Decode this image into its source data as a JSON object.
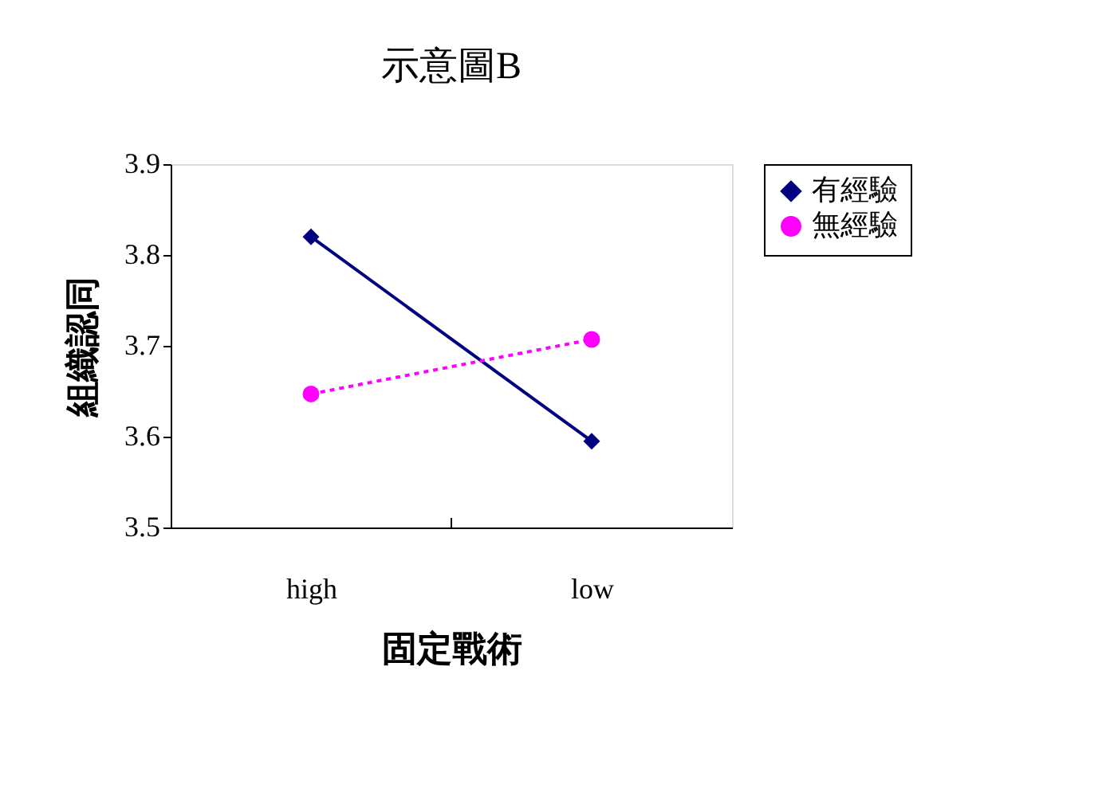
{
  "chart_data": {
    "type": "line",
    "title": "示意圖B",
    "xlabel": "固定戰術",
    "ylabel": "組織認同",
    "categories": [
      "high",
      "low"
    ],
    "series": [
      {
        "name": "有經驗",
        "color": "#000080",
        "values": [
          3.82,
          3.595
        ],
        "marker": "diamond",
        "line_style": "solid"
      },
      {
        "name": "無經驗",
        "color": "#ff00ff",
        "values": [
          3.647,
          3.707
        ],
        "marker": "circle",
        "line_style": "dotted"
      }
    ],
    "ylim": [
      3.5,
      3.9
    ],
    "yticks": [
      3.5,
      3.6,
      3.7,
      3.8,
      3.9
    ],
    "grid": false,
    "legend": "right"
  }
}
